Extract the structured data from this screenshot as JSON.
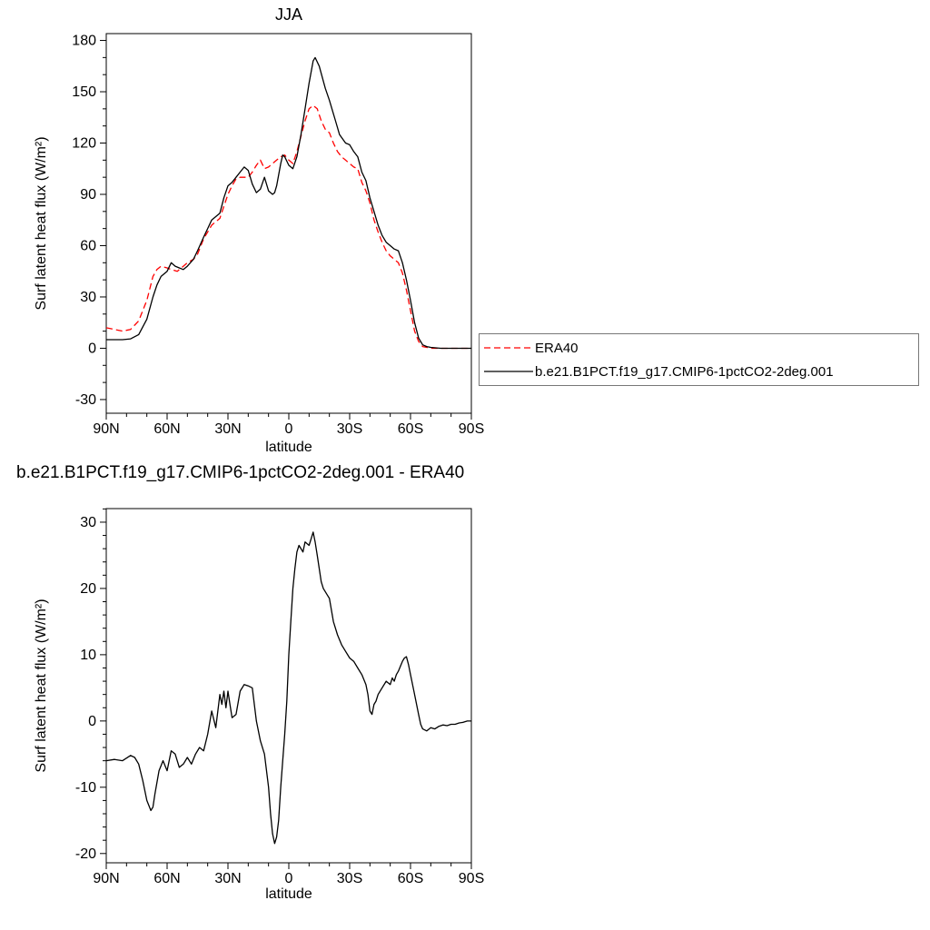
{
  "figure": {
    "background": "#ffffff",
    "text_color": "#000000"
  },
  "chart_data": [
    {
      "type": "line",
      "title": "JJA",
      "xlabel": "latitude",
      "ylabel": "Surf latent heat flux (W/m²)",
      "xlim": [
        90,
        -90
      ],
      "ylim": [
        -30,
        180
      ],
      "grid": false,
      "legend_position": "outside-right",
      "x_ticks": [
        {
          "value": 90,
          "label": "90N"
        },
        {
          "value": 60,
          "label": "60N"
        },
        {
          "value": 30,
          "label": "30N"
        },
        {
          "value": 0,
          "label": "0"
        },
        {
          "value": -30,
          "label": "30S"
        },
        {
          "value": -60,
          "label": "60S"
        },
        {
          "value": -90,
          "label": "90S"
        }
      ],
      "y_ticks": [
        -30,
        0,
        30,
        60,
        90,
        120,
        150,
        180
      ],
      "series": [
        {
          "name": "ERA40",
          "color": "#ff0000",
          "line_style": "dashed",
          "x": [
            90,
            86,
            82,
            78,
            74,
            70,
            67,
            65,
            63,
            60,
            58,
            55,
            52,
            50,
            47,
            45,
            42,
            40,
            38,
            36,
            34,
            32,
            30,
            28,
            26,
            24,
            22,
            20,
            18,
            16,
            14,
            12,
            10,
            8,
            6,
            4,
            2,
            0,
            -2,
            -4,
            -6,
            -8,
            -10,
            -12,
            -14,
            -16,
            -18,
            -20,
            -22,
            -24,
            -26,
            -28,
            -30,
            -32,
            -34,
            -36,
            -38,
            -40,
            -42,
            -44,
            -46,
            -48,
            -50,
            -52,
            -54,
            -56,
            -58,
            -60,
            -62,
            -64,
            -66,
            -68,
            -70,
            -75,
            -80,
            -85,
            -90
          ],
          "y": [
            12,
            11,
            10,
            11,
            16,
            28,
            42,
            46,
            48,
            47,
            46,
            45,
            48,
            50,
            52,
            55,
            64,
            68,
            72,
            74,
            76,
            83,
            90,
            95,
            99,
            100,
            100,
            100,
            103,
            107,
            110,
            105,
            106,
            108,
            110,
            112,
            113,
            110,
            108,
            115,
            124,
            133,
            140,
            142,
            140,
            133,
            128,
            126,
            120,
            115,
            112,
            110,
            108,
            106,
            105,
            97,
            92,
            85,
            75,
            68,
            62,
            57,
            54,
            52,
            50,
            44,
            34,
            22,
            10,
            4,
            1,
            0.5,
            0,
            0,
            0,
            0,
            0
          ]
        },
        {
          "name": "b.e21.B1PCT.f19_g17.CMIP6-1pctCO2-2deg.001",
          "color": "#000000",
          "line_style": "solid",
          "x": [
            90,
            86,
            82,
            78,
            74,
            70,
            67,
            65,
            63,
            60,
            58,
            56,
            54,
            52,
            50,
            47,
            45,
            42,
            40,
            38,
            36,
            34,
            32,
            30,
            28,
            26,
            24,
            22,
            20,
            18,
            16,
            14,
            12,
            10,
            8,
            7,
            6,
            4,
            3,
            2,
            0,
            -2,
            -4,
            -6,
            -8,
            -10,
            -12,
            -13,
            -15,
            -18,
            -20,
            -23,
            -25,
            -28,
            -30,
            -32,
            -34,
            -36,
            -38,
            -40,
            -42,
            -44,
            -46,
            -48,
            -50,
            -52,
            -54,
            -56,
            -58,
            -60,
            -62,
            -64,
            -66,
            -68,
            -70,
            -75,
            -80,
            -85,
            -90
          ],
          "y": [
            5,
            5,
            5,
            5.5,
            8,
            17,
            30,
            37,
            42,
            45,
            50,
            48,
            47,
            46,
            48,
            52,
            57,
            65,
            70,
            75,
            77,
            79,
            88,
            95,
            97,
            100,
            103,
            106,
            104,
            96,
            91,
            93,
            100,
            92,
            90,
            91,
            95,
            108,
            113,
            112,
            107,
            105,
            112,
            125,
            140,
            155,
            168,
            170,
            165,
            152,
            145,
            133,
            125,
            120,
            119,
            115,
            112,
            103,
            98,
            88,
            80,
            72,
            66,
            62,
            60,
            58,
            57,
            50,
            40,
            28,
            15,
            6,
            2,
            1,
            0.5,
            0,
            0,
            0,
            0
          ]
        }
      ]
    },
    {
      "type": "line",
      "title": "b.e21.B1PCT.f19_g17.CMIP6-1pctCO2-2deg.001 - ERA40",
      "xlabel": "latitude",
      "ylabel": "Surf latent heat flux (W/m²)",
      "xlim": [
        90,
        -90
      ],
      "ylim": [
        -20,
        30
      ],
      "grid": false,
      "x_ticks": [
        {
          "value": 90,
          "label": "90N"
        },
        {
          "value": 60,
          "label": "60N"
        },
        {
          "value": 30,
          "label": "30N"
        },
        {
          "value": 0,
          "label": "0"
        },
        {
          "value": -30,
          "label": "30S"
        },
        {
          "value": -60,
          "label": "60S"
        },
        {
          "value": -90,
          "label": "90S"
        }
      ],
      "y_ticks": [
        -20,
        -10,
        0,
        10,
        20,
        30
      ],
      "series": [
        {
          "name": "b.e21.B1PCT.f19_g17.CMIP6-1pctCO2-2deg.001 - ERA40",
          "color": "#000000",
          "line_style": "solid",
          "x": [
            90,
            86,
            82,
            78,
            76,
            74,
            72,
            70,
            68,
            67,
            66,
            64,
            62,
            60,
            58,
            56,
            54,
            52,
            50,
            48,
            46,
            44,
            42,
            40,
            38,
            36,
            34,
            33,
            32,
            31,
            30,
            29,
            28,
            26,
            24,
            22,
            20,
            18,
            16,
            14,
            12,
            10,
            9,
            8,
            7,
            6,
            5,
            4,
            3,
            2,
            1,
            0,
            -1,
            -2,
            -3,
            -4,
            -5,
            -6,
            -7,
            -8,
            -10,
            -11,
            -12,
            -13,
            -14,
            -15,
            -16,
            -17,
            -18,
            -19,
            -20,
            -22,
            -24,
            -26,
            -28,
            -30,
            -32,
            -34,
            -36,
            -38,
            -39,
            -40,
            -41,
            -42,
            -43,
            -44,
            -46,
            -48,
            -50,
            -51,
            -52,
            -53,
            -54,
            -56,
            -57,
            -58,
            -59,
            -60,
            -62,
            -64,
            -65,
            -66,
            -68,
            -70,
            -72,
            -74,
            -76,
            -78,
            -80,
            -82,
            -84,
            -86,
            -88,
            -90
          ],
          "y": [
            -6,
            -5.8,
            -6,
            -5.2,
            -5.5,
            -6.5,
            -9,
            -12,
            -13.5,
            -13,
            -11,
            -7.5,
            -6,
            -7.5,
            -4.5,
            -5,
            -7,
            -6.5,
            -5.5,
            -6.5,
            -5,
            -4,
            -4.5,
            -2,
            1.5,
            -1,
            4,
            2.5,
            4.5,
            2,
            4.5,
            2.5,
            0.5,
            1,
            4.5,
            5.5,
            5.3,
            5,
            0,
            -3,
            -5,
            -10,
            -14,
            -17,
            -18.5,
            -17.5,
            -15,
            -10,
            -6,
            -2,
            3,
            10,
            15,
            20,
            23,
            25.5,
            26.5,
            26,
            25.5,
            27,
            26.5,
            27.5,
            28.5,
            27,
            25,
            23,
            21,
            20,
            19.5,
            19,
            18.5,
            15,
            13,
            11.5,
            10.5,
            9.5,
            9,
            8,
            7,
            5.5,
            4,
            1.5,
            1,
            2.5,
            3,
            4,
            5,
            6,
            5.5,
            6.5,
            6,
            7,
            7.5,
            9,
            9.5,
            9.7,
            8.5,
            7,
            4,
            1,
            -0.5,
            -1.2,
            -1.5,
            -1,
            -1.2,
            -0.8,
            -0.6,
            -0.7,
            -0.5,
            -0.5,
            -0.3,
            -0.2,
            0,
            0
          ]
        }
      ]
    }
  ]
}
